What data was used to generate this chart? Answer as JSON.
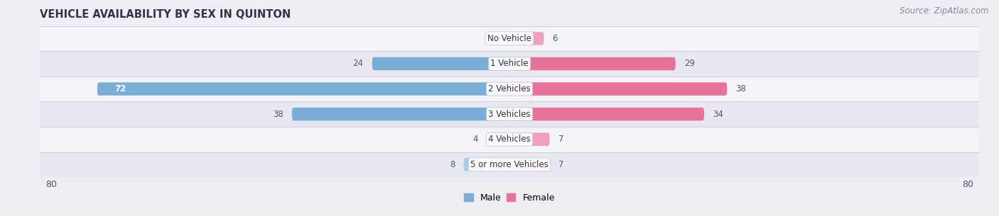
{
  "title": "VEHICLE AVAILABILITY BY SEX IN QUINTON",
  "source": "Source: ZipAtlas.com",
  "categories": [
    "No Vehicle",
    "1 Vehicle",
    "2 Vehicles",
    "3 Vehicles",
    "4 Vehicles",
    "5 or more Vehicles"
  ],
  "male_values": [
    0,
    24,
    72,
    38,
    4,
    8
  ],
  "female_values": [
    6,
    29,
    38,
    34,
    7,
    7
  ],
  "male_color": "#7AAED6",
  "female_color": "#E8729A",
  "male_color_light": "#A8CAEB",
  "female_color_light": "#F0A0BE",
  "bar_height": 0.52,
  "xlim_left": -82,
  "xlim_right": 82,
  "background_color": "#eeeef4",
  "row_bg_colors": [
    "#f4f4f8",
    "#e8e8f0"
  ],
  "title_fontsize": 10.5,
  "source_fontsize": 8.5,
  "value_fontsize": 8.5,
  "cat_fontsize": 8.5,
  "legend_fontsize": 9,
  "xlabel_fontsize": 9
}
